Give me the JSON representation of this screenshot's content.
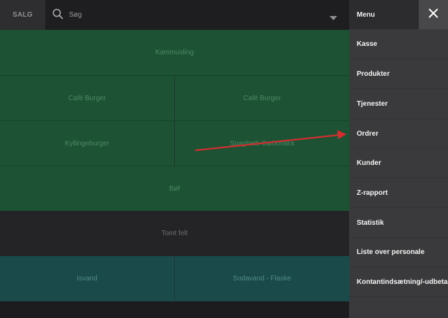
{
  "topbar": {
    "tab_label": "SALG",
    "search_placeholder": "Søg"
  },
  "grid": {
    "row1": "Kammusling",
    "row2": [
      "Café Burger",
      "Café Burger"
    ],
    "row3": [
      "Kyllingeburger",
      "Spaghetti Carbonara"
    ],
    "row4": "Bøf",
    "row5": "Tomt felt",
    "row6": [
      "Isvand",
      "Sodavand - Flaske"
    ]
  },
  "menu": {
    "title": "Menu",
    "items": [
      "Kasse",
      "Produkter",
      "Tjenester",
      "Ordrer",
      "Kunder",
      "Z-rapport",
      "Statistik",
      "Liste over personale",
      "Kontantindsætning/-udbetaling"
    ]
  },
  "colors": {
    "tile_green": "#1d5235",
    "tile_teal": "#1a4b4a",
    "tile_empty": "#242426",
    "menu_bg": "#3a3a3c",
    "annotation_arrow": "#d32f2f"
  }
}
